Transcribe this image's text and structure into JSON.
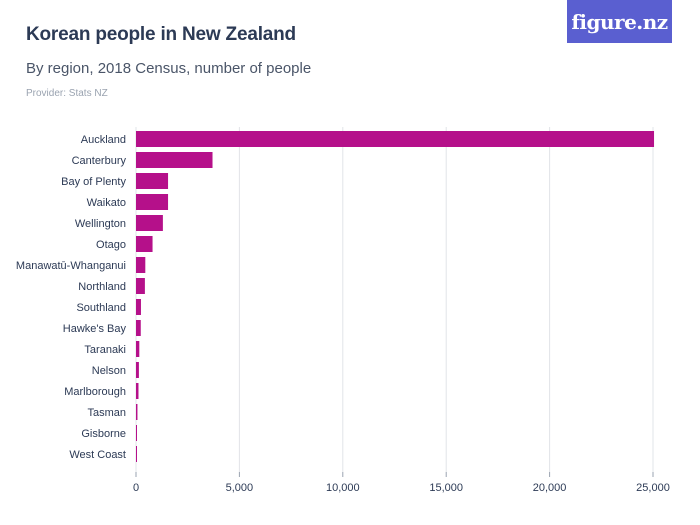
{
  "header": {
    "title": "Korean people in New Zealand",
    "subtitle": "By region, 2018 Census, number of people",
    "provider": "Provider: Stats NZ",
    "logo": "figure.nz"
  },
  "colors": {
    "bar": "#b5108a",
    "grid": "#e2e4e8",
    "logo_bg": "#5a5fd0"
  },
  "chart_data": {
    "type": "bar",
    "orientation": "horizontal",
    "title": "Korean people in New Zealand",
    "subtitle": "By region, 2018 Census, number of people",
    "xlabel": "",
    "ylabel": "",
    "xlim": [
      0,
      25000
    ],
    "ticks": [
      0,
      5000,
      10000,
      15000,
      20000,
      25000
    ],
    "tick_labels": [
      "0",
      "5,000",
      "10,000",
      "15,000",
      "20,000",
      "25,000"
    ],
    "categories": [
      "Auckland",
      "Canterbury",
      "Bay of Plenty",
      "Waikato",
      "Wellington",
      "Otago",
      "Manawatū-Whanganui",
      "Northland",
      "Southland",
      "Hawke's Bay",
      "Taranaki",
      "Nelson",
      "Marlborough",
      "Tasman",
      "Gisborne",
      "West Coast"
    ],
    "values": [
      25050,
      3700,
      1550,
      1550,
      1300,
      800,
      450,
      430,
      240,
      230,
      160,
      140,
      120,
      70,
      40,
      25
    ]
  }
}
